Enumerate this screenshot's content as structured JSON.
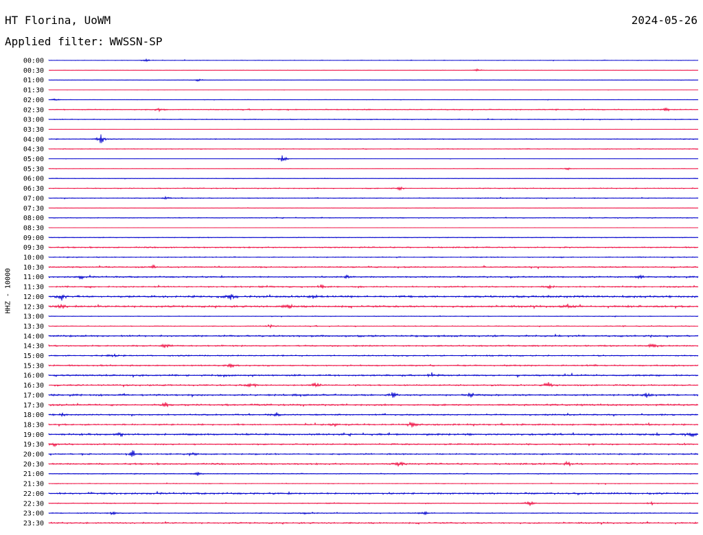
{
  "header": {
    "station": "HT Florina, UoWM",
    "date": "2024-05-26",
    "filter_label": "Applied filter:",
    "filter_value": "WWSSN-SP",
    "channel_label": "HHZ - 10000"
  },
  "chart_data": {
    "type": "line",
    "title": "HT Florina, UoWM",
    "date": "2024-05-26",
    "filter": "WWSSN-SP",
    "ylabel": "HHZ - 10000",
    "colors": [
      "#0000cc",
      "#ee1144"
    ],
    "row_labels": [
      "00:00",
      "00:30",
      "01:00",
      "01:30",
      "02:00",
      "02:30",
      "03:00",
      "03:30",
      "04:00",
      "04:30",
      "05:00",
      "05:30",
      "06:00",
      "06:30",
      "07:00",
      "07:30",
      "08:00",
      "08:30",
      "09:00",
      "09:30",
      "10:00",
      "10:30",
      "11:00",
      "11:30",
      "12:00",
      "12:30",
      "13:00",
      "13:30",
      "14:00",
      "14:30",
      "15:00",
      "15:30",
      "16:00",
      "16:30",
      "17:00",
      "17:30",
      "18:00",
      "18:30",
      "19:00",
      "19:30",
      "20:00",
      "20:30",
      "21:00",
      "21:30",
      "22:00",
      "22:30",
      "23:00",
      "23:30"
    ],
    "noise_level": [
      0.4,
      0.2,
      0.3,
      0.2,
      0.3,
      0.7,
      0.6,
      0.2,
      0.6,
      0.6,
      0.2,
      0.3,
      0.4,
      0.7,
      0.6,
      0.3,
      0.6,
      0.2,
      0.6,
      0.9,
      0.7,
      0.9,
      1.0,
      1.0,
      1.4,
      1.3,
      0.5,
      0.6,
      1.2,
      1.0,
      0.9,
      1.0,
      1.1,
      1.0,
      1.2,
      1.2,
      1.0,
      1.1,
      1.3,
      1.0,
      1.0,
      1.1,
      0.7,
      0.5,
      1.2,
      0.6,
      0.7,
      1.0
    ],
    "events": [
      {
        "row": 0,
        "pos": 0.15,
        "amp": 2
      },
      {
        "row": 1,
        "pos": 0.66,
        "amp": 2
      },
      {
        "row": 2,
        "pos": 0.23,
        "amp": 2
      },
      {
        "row": 4,
        "pos": 0.01,
        "amp": 2
      },
      {
        "row": 5,
        "pos": 0.17,
        "amp": 3
      },
      {
        "row": 5,
        "pos": 0.95,
        "amp": 3
      },
      {
        "row": 8,
        "pos": 0.08,
        "amp": 8
      },
      {
        "row": 10,
        "pos": 0.36,
        "amp": 7
      },
      {
        "row": 11,
        "pos": 0.8,
        "amp": 2
      },
      {
        "row": 13,
        "pos": 0.54,
        "amp": 3
      },
      {
        "row": 14,
        "pos": 0.18,
        "amp": 2
      },
      {
        "row": 21,
        "pos": 0.16,
        "amp": 3
      },
      {
        "row": 22,
        "pos": 0.05,
        "amp": 3
      },
      {
        "row": 22,
        "pos": 0.46,
        "amp": 3
      },
      {
        "row": 22,
        "pos": 0.91,
        "amp": 3
      },
      {
        "row": 23,
        "pos": 0.42,
        "amp": 3
      },
      {
        "row": 23,
        "pos": 0.77,
        "amp": 3
      },
      {
        "row": 24,
        "pos": 0.02,
        "amp": 5
      },
      {
        "row": 24,
        "pos": 0.28,
        "amp": 4
      },
      {
        "row": 24,
        "pos": 0.41,
        "amp": 4
      },
      {
        "row": 25,
        "pos": 0.02,
        "amp": 4
      },
      {
        "row": 25,
        "pos": 0.37,
        "amp": 4
      },
      {
        "row": 25,
        "pos": 0.8,
        "amp": 4
      },
      {
        "row": 27,
        "pos": 0.34,
        "amp": 4
      },
      {
        "row": 29,
        "pos": 0.18,
        "amp": 4
      },
      {
        "row": 29,
        "pos": 0.93,
        "amp": 4
      },
      {
        "row": 30,
        "pos": 0.1,
        "amp": 3
      },
      {
        "row": 31,
        "pos": 0.28,
        "amp": 3
      },
      {
        "row": 32,
        "pos": 0.27,
        "amp": 3
      },
      {
        "row": 32,
        "pos": 0.59,
        "amp": 3
      },
      {
        "row": 33,
        "pos": 0.31,
        "amp": 4
      },
      {
        "row": 33,
        "pos": 0.41,
        "amp": 6
      },
      {
        "row": 33,
        "pos": 0.77,
        "amp": 4
      },
      {
        "row": 34,
        "pos": 0.53,
        "amp": 4
      },
      {
        "row": 34,
        "pos": 0.65,
        "amp": 4
      },
      {
        "row": 34,
        "pos": 0.92,
        "amp": 4
      },
      {
        "row": 35,
        "pos": 0.18,
        "amp": 4
      },
      {
        "row": 36,
        "pos": 0.02,
        "amp": 3
      },
      {
        "row": 36,
        "pos": 0.35,
        "amp": 3
      },
      {
        "row": 37,
        "pos": 0.56,
        "amp": 5
      },
      {
        "row": 37,
        "pos": 0.44,
        "amp": 3
      },
      {
        "row": 38,
        "pos": 0.11,
        "amp": 3
      },
      {
        "row": 38,
        "pos": 0.99,
        "amp": 3
      },
      {
        "row": 39,
        "pos": 0.01,
        "amp": 3
      },
      {
        "row": 40,
        "pos": 0.13,
        "amp": 6
      },
      {
        "row": 40,
        "pos": 0.22,
        "amp": 4
      },
      {
        "row": 41,
        "pos": 0.54,
        "amp": 5
      },
      {
        "row": 41,
        "pos": 0.8,
        "amp": 5
      },
      {
        "row": 42,
        "pos": 0.23,
        "amp": 3
      },
      {
        "row": 45,
        "pos": 0.74,
        "amp": 5
      },
      {
        "row": 45,
        "pos": 0.93,
        "amp": 3
      },
      {
        "row": 46,
        "pos": 0.1,
        "amp": 3
      },
      {
        "row": 46,
        "pos": 0.4,
        "amp": 3
      },
      {
        "row": 46,
        "pos": 0.58,
        "amp": 3
      }
    ]
  }
}
